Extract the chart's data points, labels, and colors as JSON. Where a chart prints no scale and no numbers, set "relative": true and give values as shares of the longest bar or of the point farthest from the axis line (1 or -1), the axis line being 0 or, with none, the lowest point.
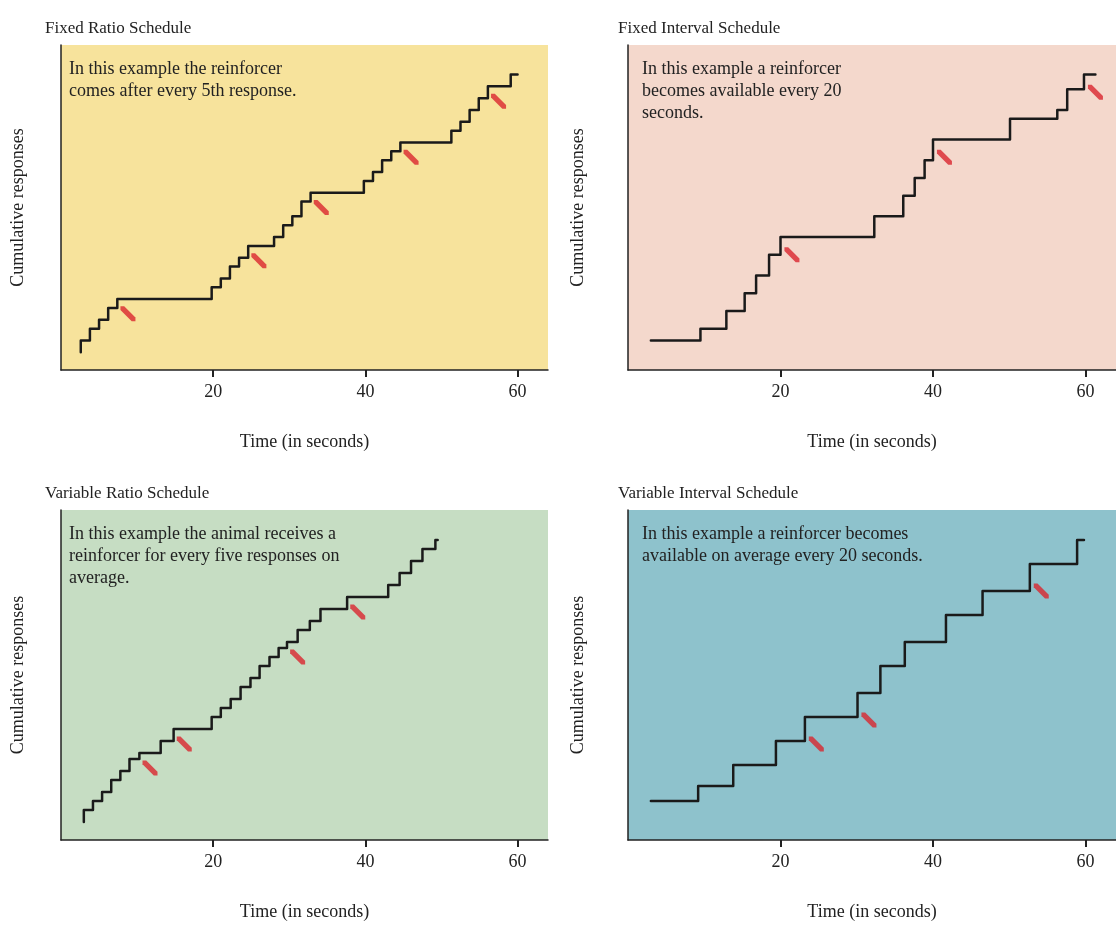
{
  "chart_data": [
    {
      "type": "step",
      "title": "Fixed Ratio Schedule",
      "xlabel": "Time (in seconds)",
      "ylabel": "Cumulative responses",
      "annotations": [
        "In this example the reinforcer comes after every 5th response."
      ],
      "relative": true,
      "marker": "none",
      "xlim": [
        0,
        64
      ],
      "xticks": [
        20,
        40,
        60
      ],
      "series": [
        {
          "color": "#1a1a1a",
          "x": [
            2.6,
            2.6,
            3.8,
            5.0,
            6.2,
            7.4,
            19.8,
            21.0,
            22.2,
            23.4,
            24.6,
            28.0,
            29.2,
            30.4,
            31.6,
            32.8,
            39.8,
            41.0,
            42.2,
            43.4,
            44.6,
            51.3,
            52.5,
            53.7,
            54.9,
            56.1,
            59.1,
            60.0
          ],
          "values": [
            0.06,
            0.1,
            0.14,
            0.17,
            0.21,
            0.24,
            0.28,
            0.31,
            0.35,
            0.38,
            0.42,
            0.45,
            0.49,
            0.52,
            0.57,
            0.6,
            0.64,
            0.67,
            0.71,
            0.74,
            0.77,
            0.81,
            0.84,
            0.88,
            0.92,
            0.96,
            1,
            1
          ]
        },
        {
          "type": "scatter",
          "color": "#d9262e",
          "x": [
            8.8,
            26.0,
            34.2,
            46.0,
            57.5
          ],
          "values": [
            0.19,
            0.37,
            0.55,
            0.72,
            0.91
          ]
        }
      ]
    },
    {
      "type": "step",
      "title": "Fixed Interval Schedule",
      "xlabel": "Time (in seconds)",
      "ylabel": "Cumulative responses",
      "annotations": [
        "In this example a reinforcer becomes available every 20 seconds."
      ],
      "relative": true,
      "marker": "none",
      "xlim": [
        0,
        64
      ],
      "xticks": [
        20,
        40,
        60
      ],
      "series": [
        {
          "color": "#1a1a1a",
          "x": [
            3.0,
            9.5,
            12.9,
            15.3,
            16.8,
            18.5,
            20.0,
            32.3,
            36.1,
            37.6,
            38.9,
            40.0,
            50.1,
            56.3,
            57.6,
            59.8,
            61.3
          ],
          "values": [
            0.1,
            0.14,
            0.2,
            0.26,
            0.32,
            0.39,
            0.45,
            0.52,
            0.59,
            0.65,
            0.71,
            0.78,
            0.85,
            0.88,
            0.95,
            1,
            1
          ]
        },
        {
          "type": "scatter",
          "color": "#d9262e",
          "x": [
            21.5,
            41.5,
            61.3
          ],
          "values": [
            0.39,
            0.72,
            0.94
          ]
        }
      ]
    },
    {
      "type": "step",
      "title": "Variable Ratio Schedule",
      "xlabel": "Time (in seconds)",
      "ylabel": "Cumulative responses",
      "annotations": [
        "In this example the animal receives a reinforcer for every five responses on average."
      ],
      "relative": true,
      "marker": "none",
      "xlim": [
        0,
        64
      ],
      "xticks": [
        20,
        40,
        60
      ],
      "series": [
        {
          "color": "#1a1a1a",
          "x": [
            3.0,
            3.0,
            4.2,
            5.4,
            6.6,
            7.8,
            9.0,
            10.3,
            13.1,
            14.8,
            19.8,
            21.0,
            22.3,
            23.6,
            24.9,
            26.1,
            27.4,
            28.6,
            29.7,
            31.1,
            32.7,
            34.1,
            37.6,
            43.0,
            44.5,
            46.0,
            47.5,
            49.2,
            49.5
          ],
          "values": [
            0.06,
            0.1,
            0.13,
            0.16,
            0.2,
            0.23,
            0.27,
            0.29,
            0.33,
            0.37,
            0.41,
            0.44,
            0.47,
            0.51,
            0.54,
            0.58,
            0.61,
            0.64,
            0.66,
            0.7,
            0.73,
            0.77,
            0.81,
            0.85,
            0.89,
            0.93,
            0.97,
            1,
            1
          ]
        },
        {
          "type": "scatter",
          "color": "#d9262e",
          "x": [
            11.7,
            16.2,
            31.1,
            39.0
          ],
          "values": [
            0.24,
            0.32,
            0.61,
            0.76
          ]
        }
      ]
    },
    {
      "type": "step",
      "title": "Variable Interval Schedule",
      "xlabel": "Time (in seconds)",
      "ylabel": "Cumulative responses",
      "annotations": [
        "In this example a reinforcer becomes available on average every 20 seconds."
      ],
      "relative": true,
      "marker": "none",
      "xlim": [
        0,
        64
      ],
      "xticks": [
        20,
        40,
        60
      ],
      "series": [
        {
          "color": "#1a1a1a",
          "x": [
            3.0,
            9.2,
            13.8,
            19.4,
            23.2,
            30.1,
            33.1,
            36.3,
            41.7,
            46.5,
            52.7,
            58.9,
            59.8
          ],
          "values": [
            0.13,
            0.18,
            0.25,
            0.33,
            0.41,
            0.49,
            0.58,
            0.66,
            0.75,
            0.83,
            0.92,
            1,
            1
          ]
        },
        {
          "type": "scatter",
          "color": "#d9262e",
          "x": [
            24.7,
            31.6,
            54.2
          ],
          "values": [
            0.32,
            0.4,
            0.83
          ]
        }
      ]
    }
  ]
}
